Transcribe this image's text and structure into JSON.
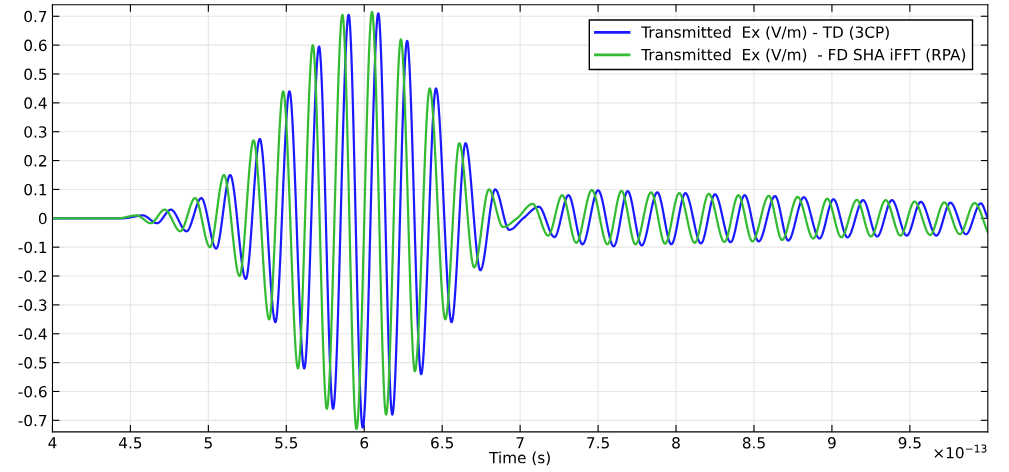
{
  "chart_data": {
    "type": "line",
    "xlabel": "Time (s)",
    "annotations": [
      "×10$^{−13}$"
    ],
    "xlim": [
      4,
      10
    ],
    "xticks": [
      4,
      4.5,
      5,
      5.5,
      6,
      6.5,
      7,
      7.5,
      8,
      8.5,
      9,
      9.5
    ],
    "ylim": [
      -0.74,
      0.74
    ],
    "yticks": [
      -0.7,
      -0.6,
      -0.5,
      -0.4,
      -0.3,
      -0.2,
      -0.1,
      0,
      0.1,
      0.2,
      0.3,
      0.4,
      0.5,
      0.6,
      0.7
    ],
    "grid": true,
    "legend": "top right",
    "marker": "none",
    "line_style": "solid",
    "series": [
      {
        "name": "Transmitted  Ex (V/m) - TD (3CP)",
        "color": "#1a1aff",
        "x": [
          4.0,
          4.45,
          4.58,
          4.67,
          4.76,
          4.86,
          4.955,
          5.05,
          5.14,
          5.24,
          5.33,
          5.43,
          5.52,
          5.615,
          5.71,
          5.8,
          5.9,
          5.99,
          6.09,
          6.18,
          6.275,
          6.365,
          6.46,
          6.56,
          6.65,
          6.745,
          6.84,
          6.93,
          7.02,
          7.12,
          7.22,
          7.31,
          7.4,
          7.5,
          7.6,
          7.69,
          7.78,
          7.88,
          7.97,
          8.06,
          8.16,
          8.25,
          8.35,
          8.44,
          8.53,
          8.635,
          8.72,
          8.82,
          8.92,
          9.01,
          9.1,
          9.2,
          9.29,
          9.385,
          9.48,
          9.57,
          9.67,
          9.76,
          9.86,
          9.955,
          10.0
        ],
        "values": [
          0.0,
          0.0,
          0.01,
          -0.017,
          0.03,
          -0.045,
          0.07,
          -0.105,
          0.15,
          -0.21,
          0.275,
          -0.36,
          0.44,
          -0.52,
          0.595,
          -0.66,
          0.705,
          -0.725,
          0.71,
          -0.68,
          0.615,
          -0.54,
          0.45,
          -0.36,
          0.26,
          -0.18,
          0.1,
          -0.04,
          0.0,
          0.04,
          -0.065,
          0.08,
          -0.09,
          0.097,
          -0.097,
          0.094,
          -0.094,
          0.09,
          -0.09,
          0.087,
          -0.087,
          0.083,
          -0.083,
          0.08,
          -0.08,
          0.077,
          -0.077,
          0.073,
          -0.07,
          0.066,
          -0.066,
          0.063,
          -0.063,
          0.063,
          -0.06,
          0.057,
          -0.06,
          0.054,
          -0.055,
          0.052,
          0.0
        ]
      },
      {
        "name": "Transmitted  Ex (V/m)  - FD SHA iFFT (RPA)",
        "color": "#33bb33",
        "x": [
          4.0,
          4.42,
          4.54,
          4.63,
          4.72,
          4.82,
          4.915,
          5.01,
          5.1,
          5.2,
          5.29,
          5.39,
          5.48,
          5.575,
          5.67,
          5.76,
          5.86,
          5.95,
          6.05,
          6.14,
          6.235,
          6.325,
          6.42,
          6.52,
          6.61,
          6.705,
          6.8,
          6.89,
          6.98,
          7.08,
          7.18,
          7.27,
          7.36,
          7.46,
          7.56,
          7.65,
          7.74,
          7.84,
          7.93,
          8.02,
          8.12,
          8.21,
          8.31,
          8.4,
          8.49,
          8.595,
          8.68,
          8.78,
          8.88,
          8.97,
          9.06,
          9.16,
          9.25,
          9.345,
          9.44,
          9.53,
          9.63,
          9.72,
          9.82,
          9.915,
          10.0
        ],
        "values": [
          0.0,
          0.0,
          0.01,
          -0.017,
          0.03,
          -0.045,
          0.07,
          -0.1,
          0.15,
          -0.2,
          0.27,
          -0.35,
          0.44,
          -0.52,
          0.6,
          -0.66,
          0.705,
          -0.73,
          0.715,
          -0.68,
          0.62,
          -0.53,
          0.45,
          -0.35,
          0.26,
          -0.17,
          0.1,
          -0.03,
          0.0,
          0.05,
          -0.06,
          0.08,
          -0.085,
          0.098,
          -0.09,
          0.095,
          -0.09,
          0.09,
          -0.088,
          0.087,
          -0.085,
          0.085,
          -0.082,
          0.08,
          -0.08,
          0.078,
          -0.075,
          0.074,
          -0.07,
          0.068,
          -0.066,
          0.064,
          -0.063,
          0.063,
          -0.06,
          0.058,
          -0.058,
          0.055,
          -0.055,
          0.053,
          -0.048
        ]
      }
    ]
  }
}
